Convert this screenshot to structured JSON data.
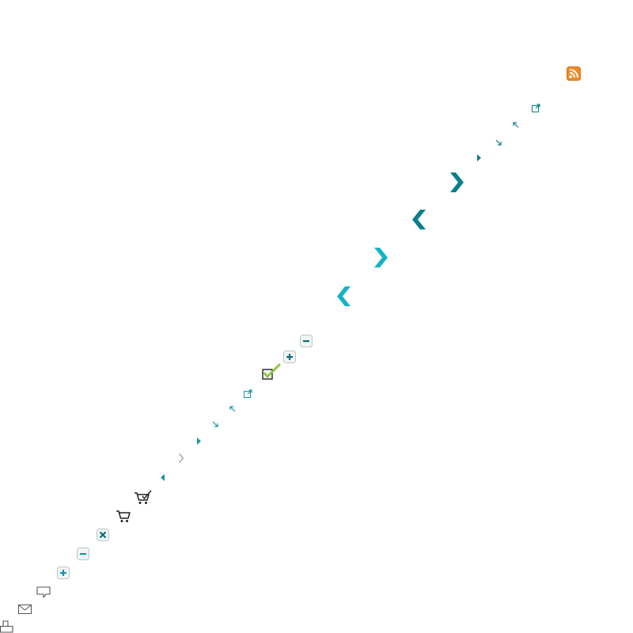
{
  "sheet": {
    "icons": [
      "rss-feed-icon",
      "external-link-icon",
      "arrow-up-left-icon",
      "arrow-down-right-icon",
      "caret-right-small-icon",
      "chevron-right-dark-teal-icon",
      "chevron-left-dark-teal-icon",
      "chevron-right-light-teal-icon",
      "chevron-left-light-teal-icon",
      "minus-box-icon",
      "plus-box-icon",
      "checkbox-checked-icon",
      "external-link-icon",
      "arrow-up-left-icon",
      "arrow-down-right-icon",
      "caret-right-small-icon",
      "chevron-right-gray-icon",
      "caret-left-small-icon",
      "cart-checked-icon",
      "cart-icon",
      "close-box-icon",
      "minus-box-icon",
      "plus-box-icon",
      "comment-icon",
      "mail-icon",
      "print-icon"
    ]
  },
  "colors": {
    "rss_orange": "#f08a24",
    "teal_dark": "#0b7f8c",
    "teal_light": "#14b4c6",
    "teal_mid": "#1796a6",
    "check_green": "#8cc63f",
    "gray": "#555555",
    "button_border": "#b9c6c9",
    "button_fill": "#f2f5f6"
  }
}
